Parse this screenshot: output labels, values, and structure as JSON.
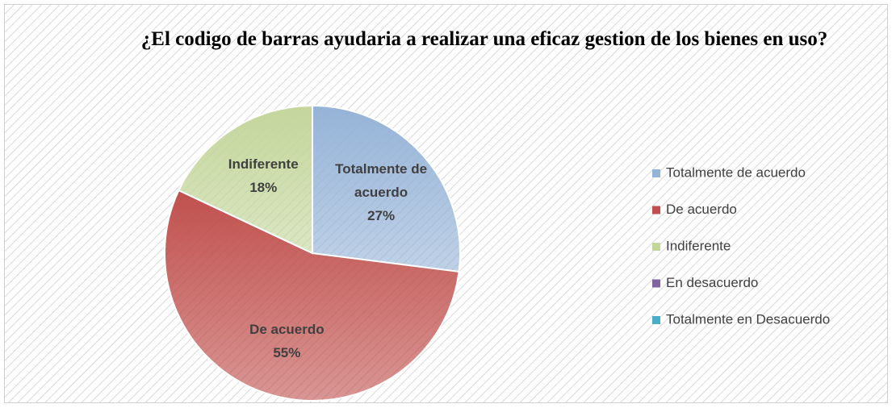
{
  "chart_data": {
    "type": "pie",
    "title": "¿El codigo de barras ayudaria a realizar una eficaz gestion de los bienes en uso?",
    "categories": [
      "Totalmente de acuerdo",
      "De acuerdo",
      "Indiferente",
      "En desacuerdo",
      "Totalmente en Desacuerdo"
    ],
    "values": [
      27,
      55,
      18,
      0,
      0
    ],
    "value_labels": [
      "27%",
      "55%",
      "18%",
      null,
      null
    ],
    "colors": [
      "#95b3d7",
      "#c0504d",
      "#c3d69b",
      "#8064a2",
      "#4bacc6"
    ],
    "legend": "right"
  }
}
